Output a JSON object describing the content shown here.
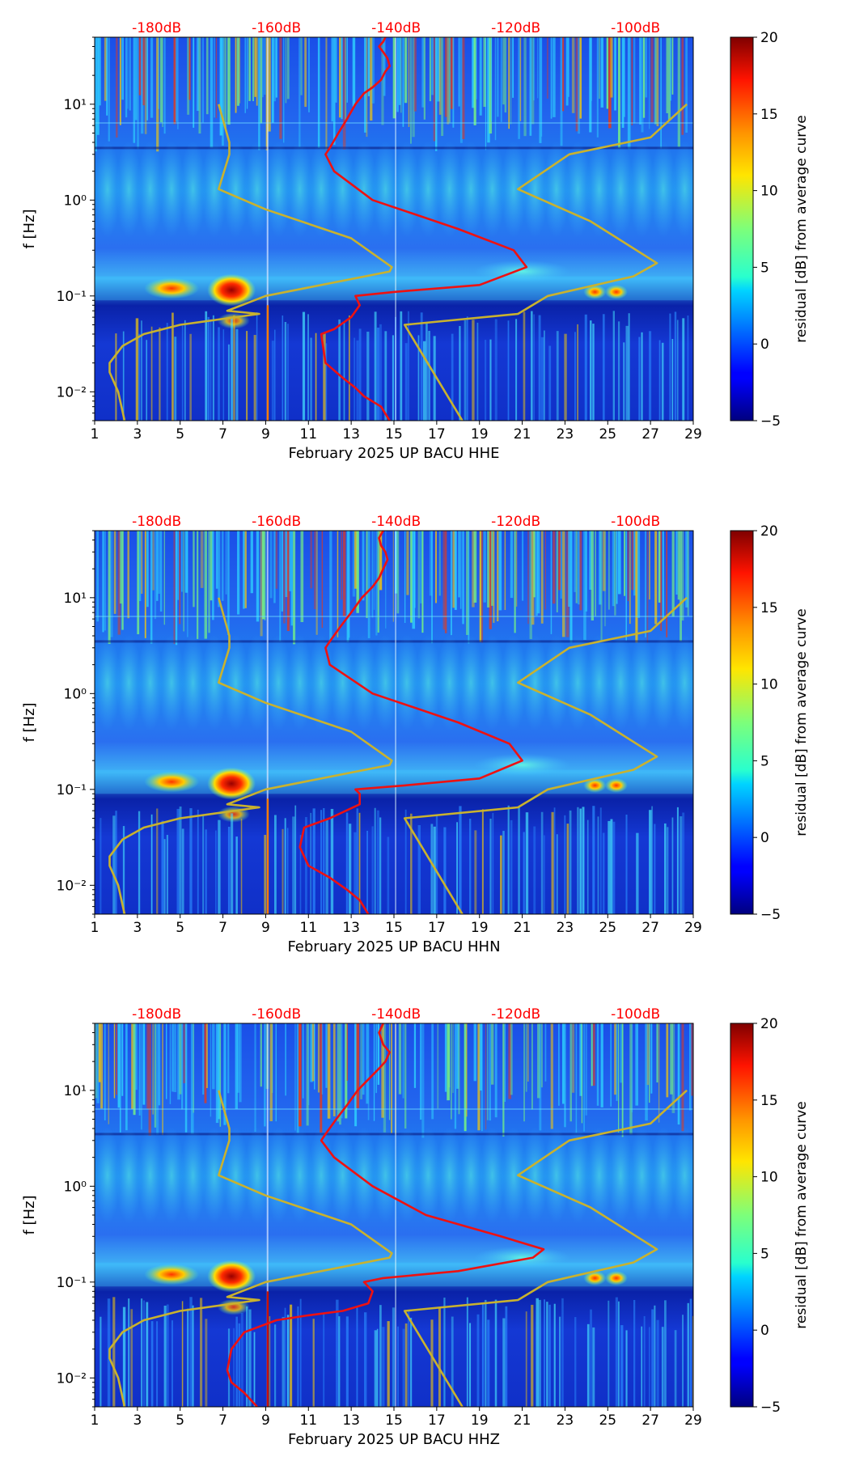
{
  "colors": {
    "red_curve": "#ee1111",
    "yellow_curve": "#c9b22e",
    "db_label": "#ff0000",
    "axis": "#000000"
  },
  "chart_data": [
    {
      "type": "heatmap",
      "title": "",
      "xlabel": "February 2025 UP BACU  HHE",
      "ylabel": "f [Hz]",
      "xlim": [
        1,
        29
      ],
      "ylim": [
        0.005,
        50
      ],
      "yscale": "log",
      "x_ticks": [
        1,
        3,
        5,
        7,
        9,
        11,
        13,
        15,
        17,
        19,
        21,
        23,
        25,
        27,
        29
      ],
      "y_tick_labels": [
        "10⁻²",
        "10⁻¹",
        "10⁰",
        "10¹"
      ],
      "y_tick_values": [
        0.01,
        0.1,
        1,
        10
      ],
      "top_axis_labels": [
        "-180dB",
        "-160dB",
        "-140dB",
        "-120dB",
        "-100dB"
      ],
      "top_axis_positions": [
        3.9,
        9.5,
        15.1,
        20.7,
        26.3
      ],
      "colorbar": {
        "label": "residual [dB] from average curve",
        "min": -5,
        "max": 20,
        "ticks": [
          -5,
          0,
          5,
          10,
          15,
          20
        ]
      },
      "series": [
        {
          "name": "median_psd_red",
          "x": [
            14.8,
            14.4,
            13.6,
            13.2,
            12.6,
            11.8,
            11.6,
            12.2,
            13.0,
            13.4,
            13.2,
            15.0,
            19.0,
            21.2,
            20.6,
            18.0,
            14.0,
            12.2,
            11.8,
            12.0,
            12.4,
            12.8,
            13.2,
            13.6,
            14.0,
            14.4,
            14.6,
            14.8,
            14.7,
            14.5,
            14.3,
            14.5,
            14.6
          ],
          "f": [
            0.005,
            0.007,
            0.009,
            0.011,
            0.014,
            0.02,
            0.04,
            0.045,
            0.06,
            0.08,
            0.1,
            0.11,
            0.13,
            0.2,
            0.3,
            0.5,
            1.0,
            2.0,
            3.0,
            3.5,
            5.0,
            7.0,
            10.0,
            13.0,
            15.0,
            18.0,
            22.0,
            25.0,
            30.0,
            35.0,
            40.0,
            45.0,
            50.0
          ]
        },
        {
          "name": "low_noise_model_yellow",
          "x": [
            2.4,
            2.1,
            1.7,
            1.7,
            2.3,
            3.3,
            5.0,
            8.7,
            7.2,
            9.0,
            14.8,
            14.9,
            13.0,
            9.0,
            6.8,
            7.3,
            7.3,
            6.8
          ],
          "f": [
            0.005,
            0.01,
            0.016,
            0.02,
            0.03,
            0.04,
            0.05,
            0.065,
            0.07,
            0.1,
            0.18,
            0.2,
            0.4,
            0.8,
            1.3,
            3.0,
            4.0,
            10.0
          ]
        },
        {
          "name": "high_noise_model_yellow",
          "x": [
            18.2,
            15.5,
            15.5,
            20.8,
            22.2,
            26.2,
            27.3,
            24.2,
            20.8,
            23.2,
            27.0,
            28.7
          ],
          "f": [
            0.005,
            0.05,
            0.05,
            0.065,
            0.1,
            0.16,
            0.22,
            0.6,
            1.3,
            3.0,
            4.5,
            10.0
          ]
        }
      ]
    },
    {
      "type": "heatmap",
      "title": "",
      "xlabel": "February 2025 UP BACU  HHN",
      "ylabel": "f [Hz]",
      "xlim": [
        1,
        29
      ],
      "ylim": [
        0.005,
        50
      ],
      "yscale": "log",
      "x_ticks": [
        1,
        3,
        5,
        7,
        9,
        11,
        13,
        15,
        17,
        19,
        21,
        23,
        25,
        27,
        29
      ],
      "y_tick_labels": [
        "10⁻²",
        "10⁻¹",
        "10⁰",
        "10¹"
      ],
      "y_tick_values": [
        0.01,
        0.1,
        1,
        10
      ],
      "top_axis_labels": [
        "-180dB",
        "-160dB",
        "-140dB",
        "-120dB",
        "-100dB"
      ],
      "top_axis_positions": [
        3.9,
        9.5,
        15.1,
        20.7,
        26.3
      ],
      "colorbar": {
        "label": "residual [dB] from average curve",
        "min": -5,
        "max": 20,
        "ticks": [
          -5,
          0,
          5,
          10,
          15,
          20
        ]
      },
      "series": [
        {
          "name": "median_psd_red",
          "x": [
            13.8,
            13.4,
            12.8,
            12.0,
            11.0,
            10.6,
            10.8,
            12.0,
            13.4,
            13.4,
            13.2,
            15.5,
            19.0,
            21.0,
            20.4,
            18.0,
            14.0,
            12.0,
            11.8,
            12.0,
            12.5,
            13.0,
            13.5,
            14.0,
            14.3,
            14.5,
            14.7,
            14.6,
            14.4,
            14.3,
            14.5
          ],
          "f": [
            0.005,
            0.007,
            0.009,
            0.012,
            0.016,
            0.025,
            0.04,
            0.05,
            0.07,
            0.09,
            0.1,
            0.11,
            0.13,
            0.2,
            0.3,
            0.5,
            1.0,
            2.0,
            3.0,
            3.5,
            5.0,
            7.0,
            10.0,
            13.0,
            16.0,
            20.0,
            25.0,
            30.0,
            35.0,
            42.0,
            50.0
          ]
        },
        {
          "name": "low_noise_model_yellow",
          "x": [
            2.4,
            2.1,
            1.7,
            1.7,
            2.3,
            3.3,
            5.0,
            8.7,
            7.2,
            9.0,
            14.8,
            14.9,
            13.0,
            9.0,
            6.8,
            7.3,
            7.3,
            6.8
          ],
          "f": [
            0.005,
            0.01,
            0.016,
            0.02,
            0.03,
            0.04,
            0.05,
            0.065,
            0.07,
            0.1,
            0.18,
            0.2,
            0.4,
            0.8,
            1.3,
            3.0,
            4.0,
            10.0
          ]
        },
        {
          "name": "high_noise_model_yellow",
          "x": [
            18.2,
            15.5,
            15.5,
            20.8,
            22.2,
            26.2,
            27.3,
            24.2,
            20.8,
            23.2,
            27.0,
            28.7
          ],
          "f": [
            0.005,
            0.05,
            0.05,
            0.065,
            0.1,
            0.16,
            0.22,
            0.6,
            1.3,
            3.0,
            4.5,
            10.0
          ]
        }
      ]
    },
    {
      "type": "heatmap",
      "title": "",
      "xlabel": "February 2025 UP BACU  HHZ",
      "ylabel": "f [Hz]",
      "xlim": [
        1,
        29
      ],
      "ylim": [
        0.005,
        50
      ],
      "yscale": "log",
      "x_ticks": [
        1,
        3,
        5,
        7,
        9,
        11,
        13,
        15,
        17,
        19,
        21,
        23,
        25,
        27,
        29
      ],
      "y_tick_labels": [
        "10⁻²",
        "10⁻¹",
        "10⁰",
        "10¹"
      ],
      "y_tick_values": [
        0.01,
        0.1,
        1,
        10
      ],
      "top_axis_labels": [
        "-180dB",
        "-160dB",
        "-140dB",
        "-120dB",
        "-100dB"
      ],
      "top_axis_positions": [
        3.9,
        9.5,
        15.1,
        20.7,
        26.3
      ],
      "colorbar": {
        "label": "residual [dB] from average curve",
        "min": -5,
        "max": 20,
        "ticks": [
          -5,
          0,
          5,
          10,
          15,
          20
        ]
      },
      "series": [
        {
          "name": "median_psd_red",
          "x": [
            8.6,
            8.0,
            7.4,
            7.2,
            7.4,
            8.0,
            9.5,
            11.0,
            12.6,
            13.8,
            14.0,
            13.6,
            14.5,
            18.0,
            21.5,
            22.0,
            20.0,
            16.5,
            14.0,
            12.2,
            11.6,
            11.8,
            12.3,
            12.8,
            13.3,
            13.8,
            14.2,
            14.6,
            14.8,
            14.5,
            14.3,
            14.5
          ],
          "f": [
            0.005,
            0.007,
            0.009,
            0.012,
            0.02,
            0.03,
            0.04,
            0.045,
            0.05,
            0.06,
            0.08,
            0.1,
            0.11,
            0.13,
            0.18,
            0.22,
            0.3,
            0.5,
            1.0,
            2.0,
            3.0,
            3.5,
            5.0,
            7.0,
            10.0,
            13.0,
            16.0,
            20.0,
            25.0,
            30.0,
            40.0,
            50.0
          ]
        },
        {
          "name": "low_noise_model_yellow",
          "x": [
            2.4,
            2.1,
            1.7,
            1.7,
            2.3,
            3.3,
            5.0,
            8.7,
            7.2,
            9.0,
            14.8,
            14.9,
            13.0,
            9.0,
            6.8,
            7.3,
            7.3,
            6.8
          ],
          "f": [
            0.005,
            0.01,
            0.016,
            0.02,
            0.03,
            0.04,
            0.05,
            0.065,
            0.07,
            0.1,
            0.18,
            0.2,
            0.4,
            0.8,
            1.3,
            3.0,
            4.0,
            10.0
          ]
        },
        {
          "name": "high_noise_model_yellow",
          "x": [
            18.2,
            15.5,
            15.5,
            20.8,
            22.2,
            26.2,
            27.3,
            24.2,
            20.8,
            23.2,
            27.0,
            28.7
          ],
          "f": [
            0.005,
            0.05,
            0.05,
            0.065,
            0.1,
            0.16,
            0.22,
            0.6,
            1.3,
            3.0,
            4.5,
            10.0
          ]
        }
      ]
    }
  ]
}
